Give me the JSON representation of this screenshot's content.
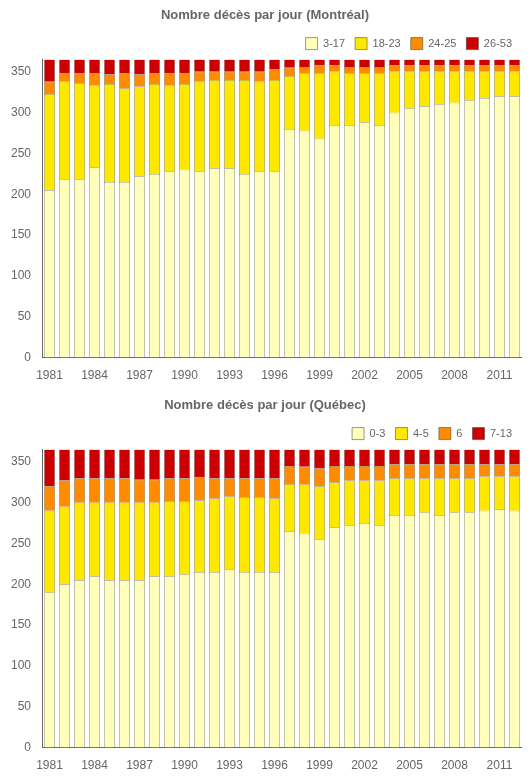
{
  "chart_data": [
    {
      "type": "bar",
      "title": "Nombre décès par jour (Montréal)",
      "categories": [
        "1981",
        null,
        null,
        "1984",
        null,
        null,
        "1987",
        null,
        null,
        "1990",
        null,
        null,
        "1993",
        null,
        null,
        "1996",
        null,
        null,
        "1999",
        null,
        null,
        "2002",
        null,
        null,
        "2005",
        null,
        null,
        "2008",
        null,
        null,
        "2011",
        null
      ],
      "series": [
        {
          "name": "3-17",
          "color": "#FFFFBB",
          "values": [
            205,
            218,
            218,
            233,
            215,
            215,
            222,
            225,
            228,
            230,
            228,
            232,
            232,
            225,
            228,
            228,
            280,
            278,
            268,
            285,
            285,
            288,
            285,
            300,
            305,
            308,
            310,
            312,
            315,
            318,
            320,
            320
          ]
        },
        {
          "name": "18-23",
          "color": "#FFE800",
          "values": [
            118,
            120,
            118,
            100,
            120,
            115,
            110,
            110,
            105,
            105,
            110,
            108,
            108,
            115,
            110,
            112,
            65,
            70,
            80,
            65,
            63,
            60,
            63,
            50,
            45,
            42,
            40,
            38,
            35,
            32,
            30,
            30
          ]
        },
        {
          "name": "24-25",
          "color": "#FF8C00",
          "values": [
            15,
            10,
            12,
            15,
            12,
            18,
            15,
            13,
            15,
            13,
            12,
            10,
            10,
            10,
            12,
            13,
            10,
            8,
            10,
            8,
            8,
            8,
            8,
            8,
            8,
            8,
            8,
            8,
            8,
            8,
            8,
            8
          ]
        },
        {
          "name": "26-53",
          "color": "#CC0000",
          "values": [
            27,
            17,
            17,
            17,
            18,
            17,
            18,
            17,
            17,
            17,
            15,
            15,
            15,
            15,
            15,
            12,
            10,
            9,
            7,
            7,
            9,
            9,
            9,
            7,
            7,
            7,
            7,
            7,
            7,
            7,
            7,
            7
          ]
        }
      ],
      "ylim": [
        0,
        365
      ],
      "yticks": [
        0,
        50,
        100,
        150,
        200,
        250,
        300,
        350
      ],
      "stacked": true,
      "grid": false,
      "legend": "upper right"
    },
    {
      "type": "bar",
      "title": "Nombre décès par jour (Québec)",
      "categories": [
        "1981",
        null,
        null,
        "1984",
        null,
        null,
        "1987",
        null,
        null,
        "1990",
        null,
        null,
        "1993",
        null,
        null,
        "1996",
        null,
        null,
        "1999",
        null,
        null,
        "2002",
        null,
        null,
        "2005",
        null,
        null,
        "2008",
        null,
        null,
        "2011",
        null
      ],
      "series": [
        {
          "name": "0-3",
          "color": "#FFFFBB",
          "values": [
            190,
            200,
            205,
            210,
            205,
            205,
            205,
            210,
            210,
            212,
            215,
            215,
            218,
            215,
            215,
            215,
            265,
            262,
            255,
            270,
            272,
            275,
            272,
            285,
            285,
            288,
            285,
            288,
            288,
            290,
            292,
            290
          ]
        },
        {
          "name": "4-5",
          "color": "#FFE800",
          "values": [
            100,
            95,
            95,
            90,
            95,
            95,
            95,
            90,
            92,
            90,
            88,
            90,
            90,
            92,
            92,
            90,
            58,
            60,
            65,
            55,
            55,
            52,
            55,
            45,
            45,
            42,
            45,
            42,
            42,
            42,
            40,
            42
          ]
        },
        {
          "name": "6",
          "color": "#FF8C00",
          "values": [
            30,
            32,
            30,
            30,
            30,
            30,
            28,
            28,
            28,
            28,
            28,
            25,
            22,
            23,
            23,
            25,
            22,
            22,
            22,
            20,
            18,
            18,
            18,
            17,
            17,
            17,
            17,
            17,
            17,
            15,
            15,
            15
          ]
        },
        {
          "name": "7-13",
          "color": "#CC0000",
          "values": [
            45,
            38,
            35,
            35,
            35,
            35,
            37,
            37,
            35,
            35,
            34,
            35,
            35,
            35,
            35,
            35,
            20,
            21,
            23,
            20,
            20,
            20,
            20,
            18,
            18,
            18,
            18,
            18,
            18,
            18,
            18,
            18
          ]
        }
      ],
      "ylim": [
        0,
        365
      ],
      "yticks": [
        0,
        50,
        100,
        150,
        200,
        250,
        300,
        350
      ],
      "stacked": true,
      "grid": false,
      "legend": "upper right"
    }
  ]
}
